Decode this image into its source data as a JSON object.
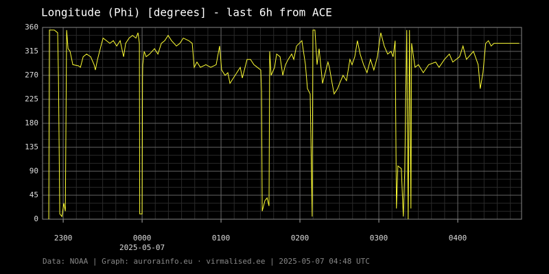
{
  "chart_data": {
    "type": "line",
    "title": "Longitude (Phi) [degrees] - last 6h from ACE",
    "date_label": "2025-05-07",
    "footer": "Data: NOAA | Graph: aurorainfo.eu · virmalised.ee | 2025-05-07 04:48 UTC",
    "color": "#ffff33",
    "grid": true,
    "xminor_step": 10,
    "yminor_step": 15,
    "xlim": [
      -75.7,
      288.5
    ],
    "xticks": [
      {
        "value": -60,
        "label": "2300"
      },
      {
        "value": 0,
        "label": "0000"
      },
      {
        "value": 60,
        "label": "0100"
      },
      {
        "value": 120,
        "label": "0200"
      },
      {
        "value": 180,
        "label": "0300"
      },
      {
        "value": 240,
        "label": "0400"
      }
    ],
    "ylim": [
      0,
      360
    ],
    "yticks": [
      0,
      45,
      90,
      135,
      180,
      225,
      270,
      315,
      360
    ],
    "x": [
      -71,
      -70.5,
      -66.8,
      -64.2,
      -63.6,
      -62.6,
      -61.0,
      -59.5,
      -58.4,
      -57.4,
      -56.3,
      -54.8,
      -52.7,
      -48.5,
      -46.9,
      -44.8,
      -42.2,
      -39.1,
      -36.5,
      -35.5,
      -33.9,
      -31.3,
      -29.7,
      -27.1,
      -24.5,
      -21.9,
      -19.3,
      -16.7,
      -14.1,
      -12.5,
      -9.9,
      -7.3,
      -4.7,
      -3.1,
      -2.1,
      -1.8,
      0,
      0.3,
      0.5,
      1.6,
      3.1,
      5.7,
      9.4,
      12.0,
      14.6,
      17.2,
      19.8,
      22.4,
      26.1,
      28.7,
      31.3,
      35.5,
      38.1,
      39.6,
      41.7,
      44.3,
      48.5,
      52.2,
      56.3,
      58.9,
      60.5,
      63.1,
      65.2,
      66.8,
      69.4,
      72.0,
      74.6,
      76.2,
      78.3,
      79.8,
      82.4,
      85.0,
      87.6,
      90.2,
      90.8,
      91.3,
      93.4,
      95.0,
      96.5,
      97.0,
      98.1,
      100.7,
      102.3,
      104.9,
      107.0,
      109.0,
      111.1,
      113.7,
      115.3,
      117.4,
      121.5,
      124.2,
      125.7,
      127.8,
      129.3,
      129.9,
      131.4,
      133.0,
      134.6,
      137.2,
      139.2,
      141.3,
      142.4,
      144.5,
      146.0,
      148.6,
      150.2,
      152.8,
      155.4,
      158.0,
      159.6,
      161.7,
      163.7,
      165.8,
      168.4,
      171.0,
      173.6,
      176.2,
      178.9,
      181.5,
      184.1,
      186.7,
      189.3,
      190.8,
      192.4,
      193.4,
      194.5,
      197.1,
      198.6,
      199.7,
      201.2,
      202.3,
      203.3,
      204.4,
      204.9,
      207.5,
      210.1,
      213.8,
      217.9,
      223.2,
      225.8,
      229.9,
      233.6,
      236.2,
      241.4,
      244.0,
      246.6,
      251.9,
      255.5,
      257.1,
      259.2,
      261.2,
      263.3,
      265.4,
      267.5,
      286.8
    ],
    "values": [
      0,
      355,
      355,
      350,
      265,
      10,
      5,
      30,
      15,
      355,
      320,
      315,
      290,
      288,
      285,
      305,
      310,
      305,
      290,
      280,
      300,
      325,
      340,
      335,
      330,
      335,
      325,
      335,
      305,
      330,
      340,
      345,
      340,
      350,
      330,
      10,
      10,
      265,
      290,
      315,
      305,
      310,
      320,
      310,
      330,
      335,
      345,
      335,
      325,
      330,
      340,
      335,
      330,
      285,
      295,
      285,
      290,
      285,
      290,
      325,
      280,
      270,
      275,
      255,
      265,
      275,
      285,
      265,
      285,
      300,
      300,
      290,
      285,
      280,
      240,
      15,
      35,
      40,
      25,
      315,
      270,
      285,
      310,
      305,
      270,
      290,
      300,
      310,
      300,
      325,
      335,
      290,
      245,
      235,
      5,
      355,
      355,
      290,
      320,
      255,
      275,
      295,
      285,
      255,
      235,
      245,
      255,
      270,
      260,
      300,
      290,
      305,
      335,
      310,
      290,
      275,
      300,
      280,
      305,
      350,
      325,
      310,
      315,
      305,
      335,
      20,
      100,
      95,
      5,
      90,
      355,
      0,
      355,
      20,
      330,
      285,
      290,
      275,
      290,
      295,
      285,
      300,
      310,
      295,
      305,
      325,
      300,
      315,
      290,
      245,
      275,
      330,
      335,
      325,
      330,
      330
    ]
  }
}
